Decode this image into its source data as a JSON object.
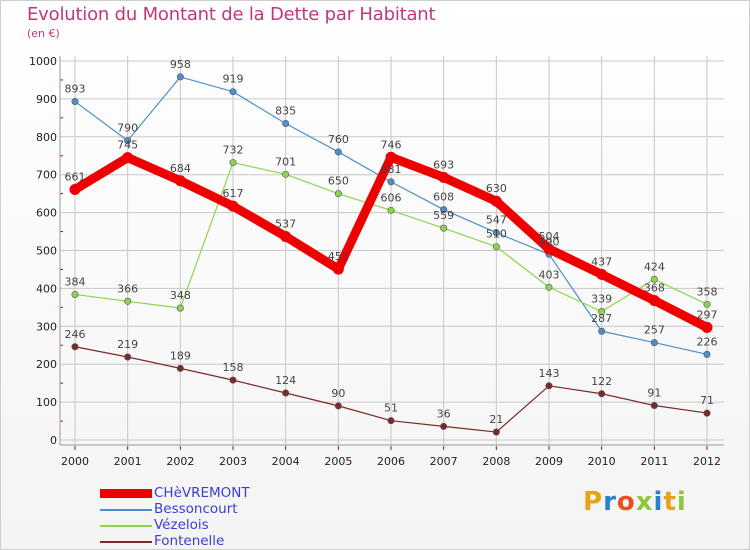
{
  "title": "Evolution du Montant de la Dette par Habitant",
  "subtitle": "(en €)",
  "logo_text": "Proxiti",
  "colors": {
    "title": "#c0387a",
    "grid": "#c8c8c8",
    "legend_text": "#3c3cd8",
    "axis_tick_marks": "#cc0000"
  },
  "chart_data": {
    "type": "line",
    "title": "Evolution du Montant de la Dette par Habitant",
    "subtitle": "(en €)",
    "xlabel": "",
    "ylabel": "",
    "ylim": [
      0,
      1000
    ],
    "yticks": [
      0,
      100,
      200,
      300,
      400,
      500,
      600,
      700,
      800,
      900,
      1000
    ],
    "grid": true,
    "legend_position": "bottom-left",
    "x": [
      "2000",
      "2001",
      "2002",
      "2003",
      "2004",
      "2005",
      "2006",
      "2007",
      "2008",
      "2009",
      "2010",
      "2011",
      "2012"
    ],
    "series": [
      {
        "name": "CHèVREMONT",
        "color": "#ee0000",
        "bold": true,
        "values": [
          661,
          745,
          684,
          617,
          537,
          451,
          746,
          693,
          630,
          504,
          437,
          368,
          297
        ]
      },
      {
        "name": "Bessoncourt",
        "color": "#4f8fc9",
        "bold": false,
        "values": [
          893,
          790,
          958,
          919,
          835,
          760,
          681,
          608,
          547,
          490,
          287,
          257,
          226
        ]
      },
      {
        "name": "Vézelois",
        "color": "#8ed44f",
        "bold": false,
        "values": [
          384,
          366,
          348,
          732,
          701,
          650,
          606,
          559,
          510,
          403,
          339,
          424,
          358
        ]
      },
      {
        "name": "Fontenelle",
        "color": "#7a2a2a",
        "bold": false,
        "values": [
          246,
          219,
          189,
          158,
          124,
          90,
          51,
          36,
          21,
          143,
          122,
          91,
          71
        ]
      }
    ]
  }
}
